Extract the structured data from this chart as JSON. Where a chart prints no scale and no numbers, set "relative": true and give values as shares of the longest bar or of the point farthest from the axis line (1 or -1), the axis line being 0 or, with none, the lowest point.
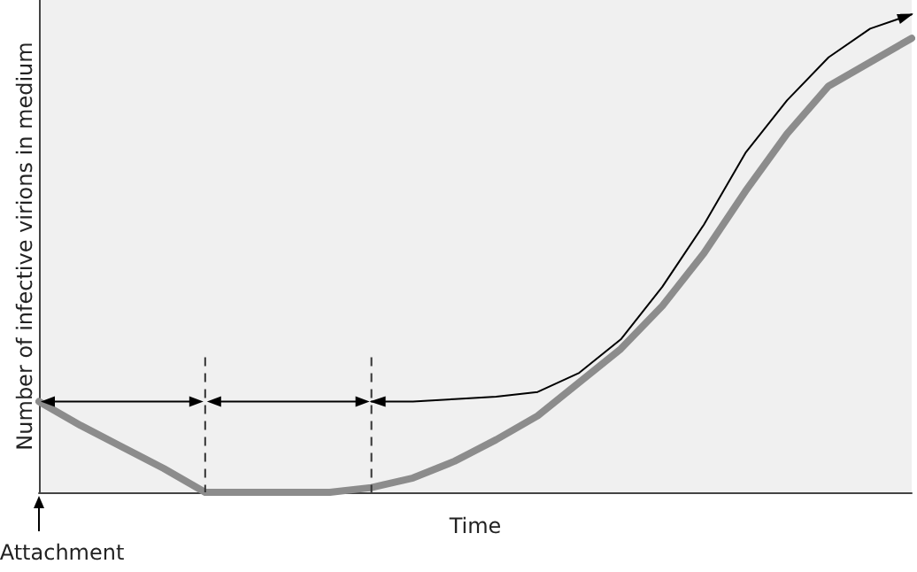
{
  "chart_data": {
    "type": "line",
    "relative": true,
    "xlabel": "Time",
    "ylabel": "Number of infective virions in medium",
    "grid": false,
    "marker": "none",
    "line_style": "solid",
    "categories": [
      null,
      null,
      null,
      null,
      null,
      null,
      null,
      null,
      null,
      null,
      null,
      null,
      null,
      null,
      null,
      null,
      null,
      null,
      null,
      null,
      null,
      null
    ],
    "series": [
      {
        "color": "#8c8c8c",
        "values": [
          0.19,
          0.14,
          0.095,
          0.05,
          0,
          0,
          0,
          0,
          0.01,
          0.03,
          0.065,
          0.11,
          0.16,
          0.23,
          0.3,
          0.39,
          0.5,
          0.63,
          0.75,
          0.85,
          0.9,
          0.95
        ]
      },
      {
        "color": "#000000",
        "values": [
          null,
          null,
          null,
          null,
          null,
          null,
          null,
          null,
          0.19,
          0.19,
          0.195,
          0.2,
          0.21,
          0.25,
          0.32,
          0.43,
          0.56,
          0.71,
          0.82,
          0.91,
          0.97,
          1
        ]
      }
    ],
    "annotations": [
      "Attachment"
    ]
  }
}
